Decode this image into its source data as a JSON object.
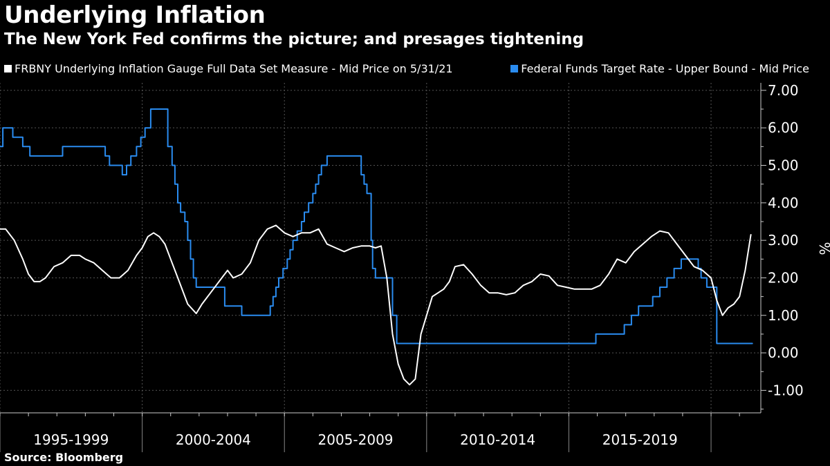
{
  "title": "Underlying Inflation",
  "subtitle": "The New York Fed confirms the picture; and presages tightening",
  "source": "Source: Bloomberg",
  "colors": {
    "background": "#000000",
    "series_inflation": "#ffffff",
    "series_fedfunds": "#2a8cf0",
    "grid": "#555555"
  },
  "legend": [
    {
      "label": "FRBNY Underlying Inflation Gauge Full Data Set Measure - Mid Price on 5/31/21",
      "color": "#ffffff"
    },
    {
      "label": "Federal Funds Target Rate - Upper Bound - Mid Price",
      "color": "#2a8cf0"
    }
  ],
  "chart_data": {
    "type": "line",
    "title": "Underlying Inflation",
    "ylabel": "%",
    "ylim": [
      -1.6,
      7.2
    ],
    "yticks": [
      -1,
      0,
      1,
      2,
      3,
      4,
      5,
      6,
      7
    ],
    "ytick_labels": [
      "-1.00",
      "0.00",
      "1.00",
      "2.00",
      "3.00",
      "4.00",
      "5.00",
      "6.00",
      "7.00"
    ],
    "xlim": [
      1995.0,
      2021.75
    ],
    "x_boundaries": [
      1995,
      2000,
      2005,
      2010,
      2015,
      2020
    ],
    "x_category_labels": [
      {
        "label": "1995-1999",
        "center": 1997.5
      },
      {
        "label": "2000-2004",
        "center": 2002.5
      },
      {
        "label": "2005-2009",
        "center": 2007.5
      },
      {
        "label": "2010-2014",
        "center": 2012.5
      },
      {
        "label": "2015-2019",
        "center": 2017.5
      }
    ],
    "series": [
      {
        "name": "FRBNY Underlying Inflation Gauge Full Data Set Measure - Mid Price on 5/31/21",
        "step": false,
        "x": [
          1995.0,
          1995.2,
          1995.5,
          1995.8,
          1996.0,
          1996.2,
          1996.4,
          1996.6,
          1996.9,
          1997.2,
          1997.5,
          1997.8,
          1998.0,
          1998.3,
          1998.6,
          1998.9,
          1999.2,
          1999.5,
          1999.8,
          2000.0,
          2000.2,
          2000.4,
          2000.6,
          2000.8,
          2001.0,
          2001.3,
          2001.6,
          2001.9,
          2002.1,
          2002.3,
          2002.5,
          2002.8,
          2003.0,
          2003.2,
          2003.5,
          2003.8,
          2004.1,
          2004.4,
          2004.7,
          2005.0,
          2005.3,
          2005.6,
          2005.9,
          2006.2,
          2006.5,
          2006.8,
          2007.1,
          2007.4,
          2007.7,
          2008.0,
          2008.2,
          2008.4,
          2008.6,
          2008.8,
          2009.0,
          2009.2,
          2009.4,
          2009.6,
          2009.8,
          2010.0,
          2010.2,
          2010.4,
          2010.6,
          2010.8,
          2011.0,
          2011.3,
          2011.6,
          2011.9,
          2012.2,
          2012.5,
          2012.8,
          2013.1,
          2013.4,
          2013.7,
          2014.0,
          2014.3,
          2014.6,
          2014.9,
          2015.2,
          2015.5,
          2015.8,
          2016.1,
          2016.4,
          2016.7,
          2017.0,
          2017.3,
          2017.6,
          2017.9,
          2018.2,
          2018.5,
          2018.8,
          2019.1,
          2019.4,
          2019.7,
          2020.0,
          2020.2,
          2020.4,
          2020.6,
          2020.8,
          2021.0,
          2021.2,
          2021.4
        ],
        "values": [
          3.3,
          3.3,
          3.0,
          2.5,
          2.1,
          1.9,
          1.9,
          2.0,
          2.3,
          2.4,
          2.6,
          2.6,
          2.5,
          2.4,
          2.2,
          2.0,
          2.0,
          2.2,
          2.6,
          2.8,
          3.1,
          3.2,
          3.1,
          2.9,
          2.5,
          1.9,
          1.3,
          1.05,
          1.3,
          1.5,
          1.7,
          2.0,
          2.2,
          2.0,
          2.1,
          2.4,
          3.0,
          3.3,
          3.4,
          3.2,
          3.1,
          3.2,
          3.2,
          3.3,
          2.9,
          2.8,
          2.7,
          2.8,
          2.85,
          2.85,
          2.8,
          2.85,
          2.0,
          0.5,
          -0.3,
          -0.7,
          -0.85,
          -0.7,
          0.5,
          1.0,
          1.5,
          1.6,
          1.7,
          1.9,
          2.3,
          2.35,
          2.1,
          1.8,
          1.6,
          1.6,
          1.55,
          1.6,
          1.8,
          1.9,
          2.1,
          2.05,
          1.8,
          1.75,
          1.7,
          1.7,
          1.7,
          1.8,
          2.1,
          2.5,
          2.4,
          2.7,
          2.9,
          3.1,
          3.25,
          3.2,
          2.9,
          2.6,
          2.3,
          2.2,
          2.0,
          1.4,
          1.0,
          1.2,
          1.3,
          1.5,
          2.2,
          3.15
        ]
      },
      {
        "name": "Federal Funds Target Rate - Upper Bound - Mid Price",
        "step": true,
        "x": [
          1995.0,
          1995.1,
          1995.45,
          1995.8,
          1996.05,
          1997.2,
          1998.7,
          1998.85,
          1999.3,
          1999.45,
          1999.6,
          1999.8,
          1999.95,
          2000.1,
          2000.3,
          2000.4,
          2000.9,
          2001.05,
          2001.15,
          2001.25,
          2001.35,
          2001.5,
          2001.6,
          2001.7,
          2001.8,
          2001.9,
          2002.9,
          2003.5,
          2004.5,
          2004.6,
          2004.7,
          2004.8,
          2004.95,
          2005.1,
          2005.2,
          2005.3,
          2005.45,
          2005.6,
          2005.7,
          2005.85,
          2006.0,
          2006.1,
          2006.2,
          2006.3,
          2006.5,
          2007.7,
          2007.8,
          2007.9,
          2008.05,
          2008.1,
          2008.2,
          2008.3,
          2008.8,
          2008.95,
          2009.05,
          2015.95,
          2016.95,
          2017.2,
          2017.45,
          2017.7,
          2017.95,
          2018.2,
          2018.45,
          2018.7,
          2018.95,
          2019.55,
          2019.65,
          2019.85,
          2020.2,
          2021.45
        ],
        "values": [
          5.5,
          6.0,
          5.75,
          5.5,
          5.25,
          5.5,
          5.25,
          5.0,
          4.75,
          5.0,
          5.25,
          5.5,
          5.75,
          6.0,
          6.5,
          6.5,
          5.5,
          5.0,
          4.5,
          4.0,
          3.75,
          3.5,
          3.0,
          2.5,
          2.0,
          1.75,
          1.25,
          1.0,
          1.25,
          1.5,
          1.75,
          2.0,
          2.25,
          2.5,
          2.75,
          3.0,
          3.25,
          3.5,
          3.75,
          4.0,
          4.25,
          4.5,
          4.75,
          5.0,
          5.25,
          4.75,
          4.5,
          4.25,
          3.0,
          2.25,
          2.0,
          2.0,
          1.0,
          0.25,
          0.25,
          0.5,
          0.75,
          1.0,
          1.25,
          1.25,
          1.5,
          1.75,
          2.0,
          2.25,
          2.5,
          2.25,
          2.0,
          1.75,
          0.25,
          0.25
        ]
      }
    ]
  }
}
